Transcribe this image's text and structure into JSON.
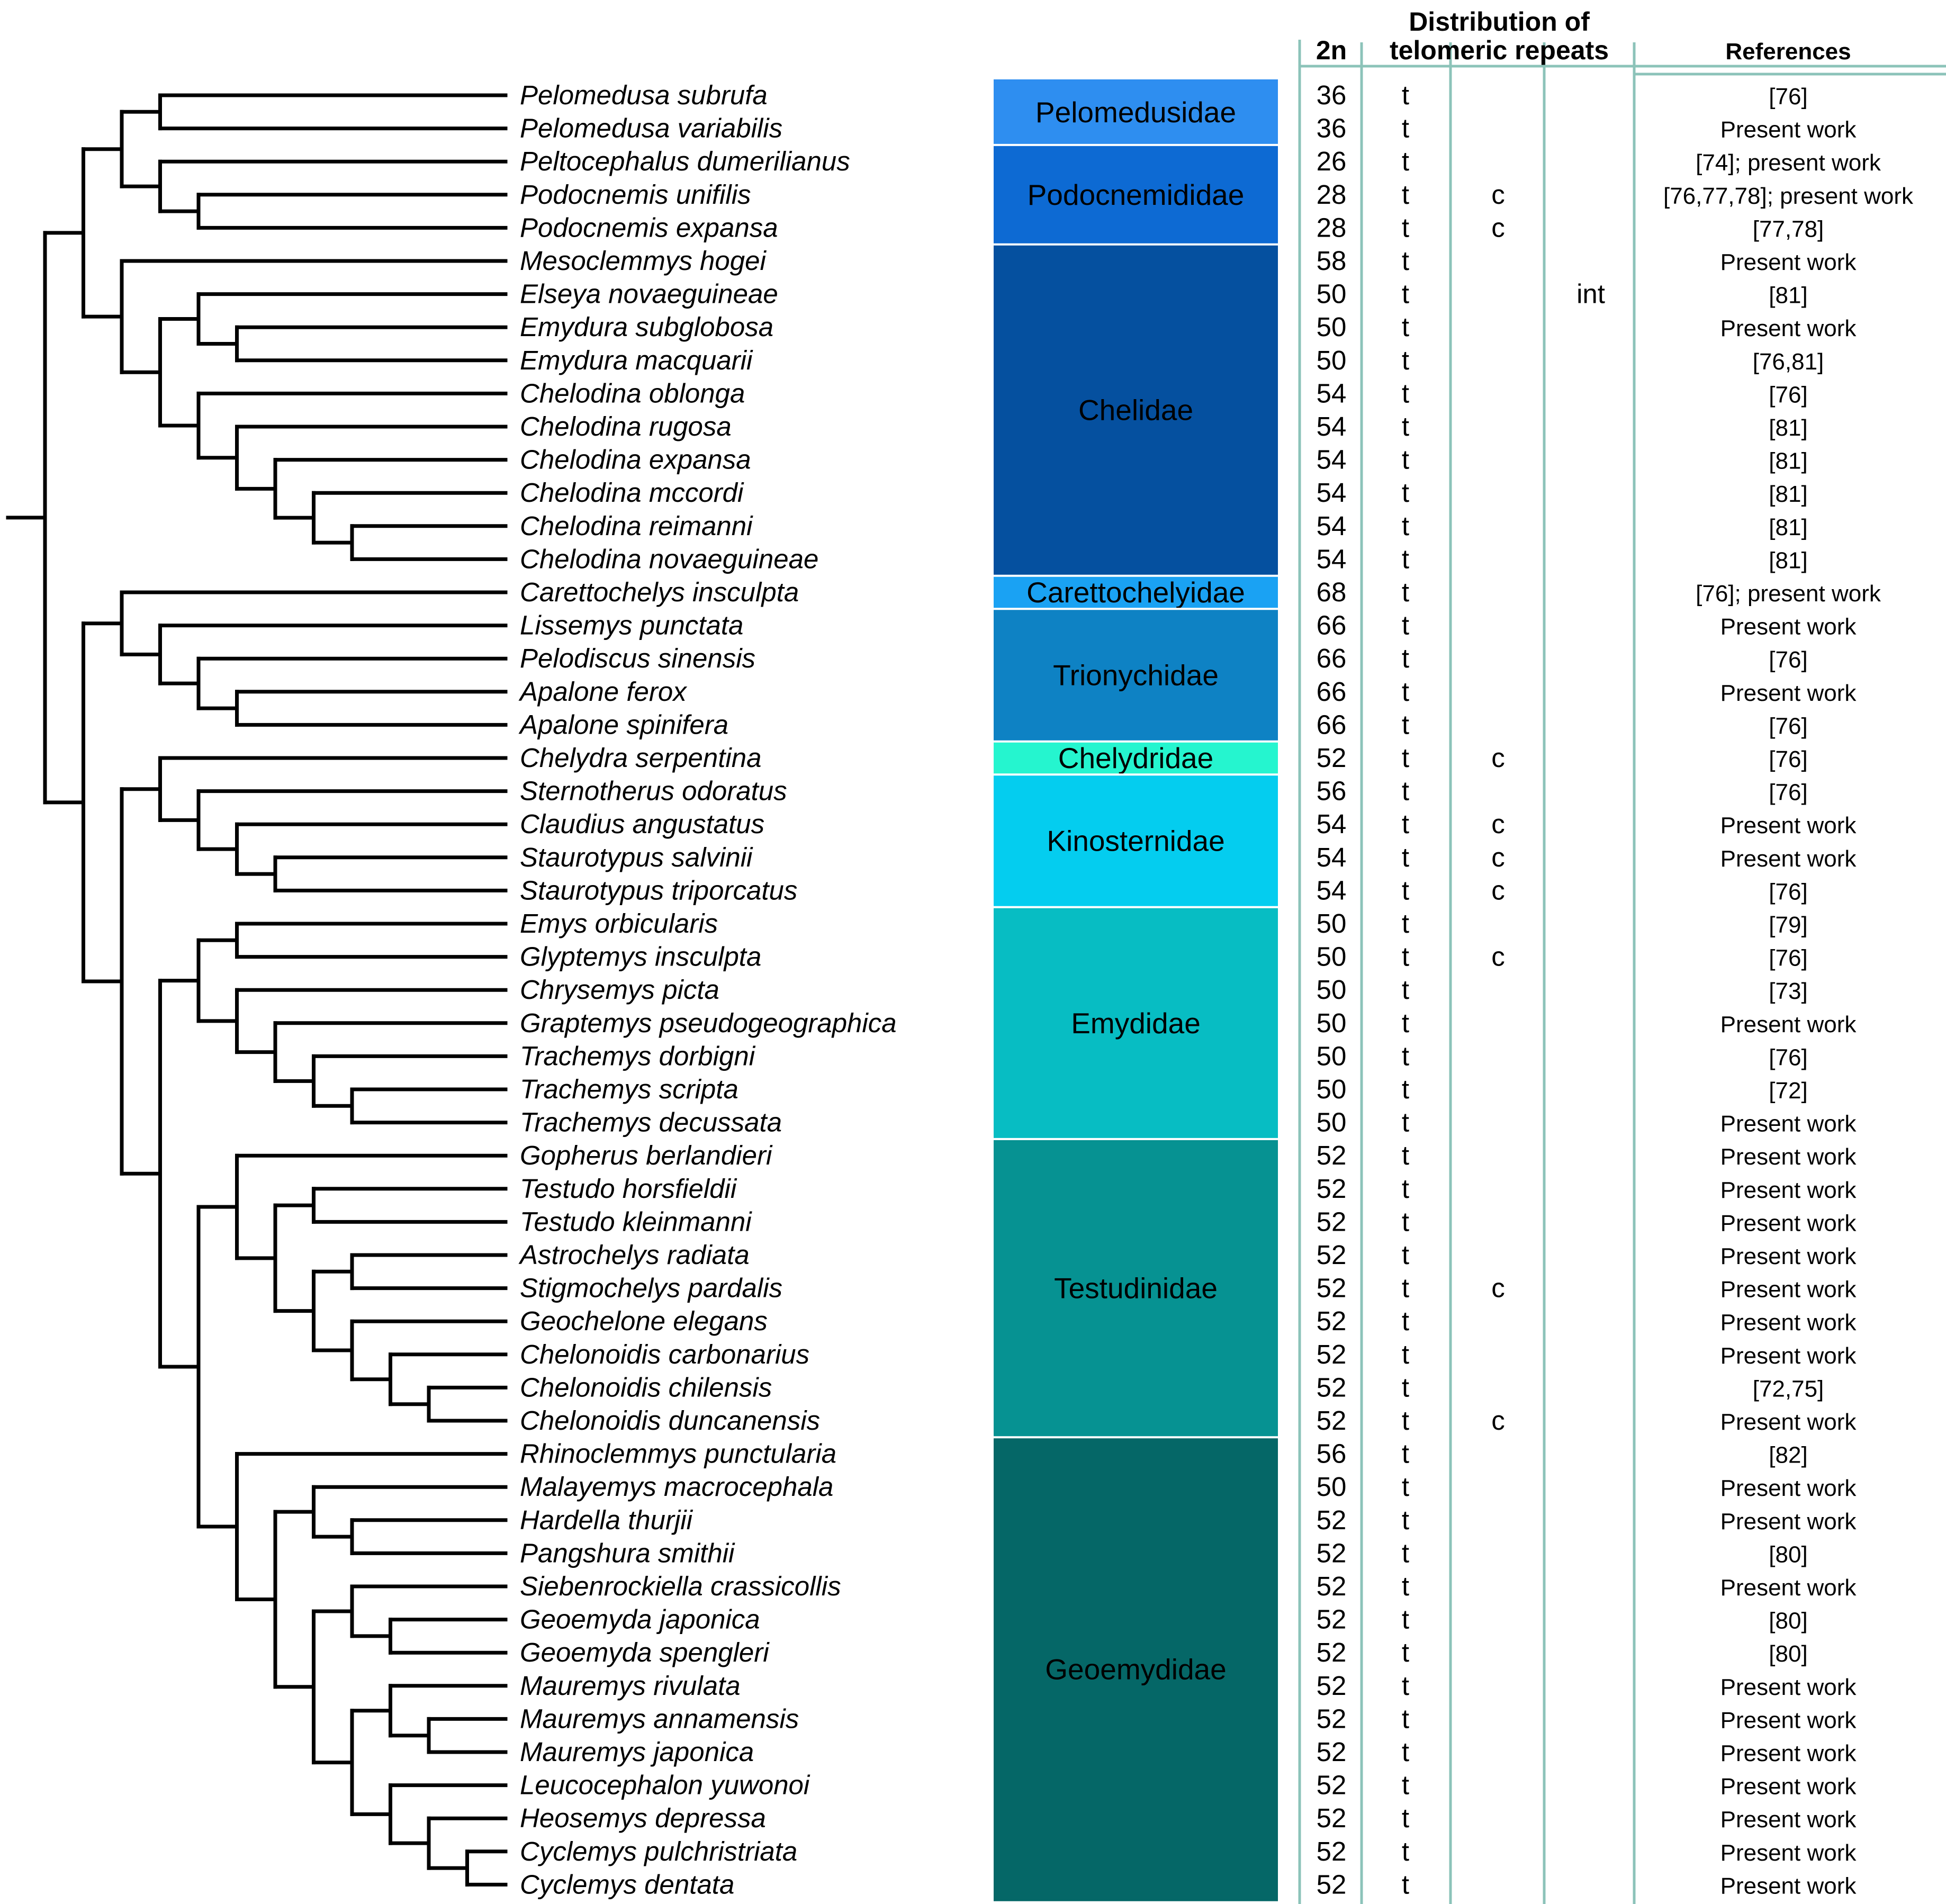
{
  "headers": {
    "chromosome_number": "2n",
    "distribution_line1": "Distribution of",
    "distribution_line2": "telomeric repeats",
    "references": "References"
  },
  "species": [
    {
      "name": "Pelomedusa subrufa",
      "n2": "36",
      "t": "t",
      "c": "",
      "int": "",
      "ref": "[76]"
    },
    {
      "name": "Pelomedusa variabilis",
      "n2": "36",
      "t": "t",
      "c": "",
      "int": "",
      "ref": "Present work"
    },
    {
      "name": "Peltocephalus dumerilianus",
      "n2": "26",
      "t": "t",
      "c": "",
      "int": "",
      "ref": "[74]; present work"
    },
    {
      "name": "Podocnemis unifilis",
      "n2": "28",
      "t": "t",
      "c": "c",
      "int": "",
      "ref": "[76,77,78]; present work"
    },
    {
      "name": "Podocnemis expansa",
      "n2": "28",
      "t": "t",
      "c": "c",
      "int": "",
      "ref": "[77,78]"
    },
    {
      "name": "Mesoclemmys hogei",
      "n2": "58",
      "t": "t",
      "c": "",
      "int": "",
      "ref": "Present work"
    },
    {
      "name": "Elseya novaeguineae",
      "n2": "50",
      "t": "t",
      "c": "",
      "int": "int",
      "ref": "[81]"
    },
    {
      "name": "Emydura subglobosa",
      "n2": "50",
      "t": "t",
      "c": "",
      "int": "",
      "ref": "Present work"
    },
    {
      "name": "Emydura macquarii",
      "n2": "50",
      "t": "t",
      "c": "",
      "int": "",
      "ref": "[76,81]"
    },
    {
      "name": "Chelodina oblonga",
      "n2": "54",
      "t": "t",
      "c": "",
      "int": "",
      "ref": "[76]"
    },
    {
      "name": "Chelodina rugosa",
      "n2": "54",
      "t": "t",
      "c": "",
      "int": "",
      "ref": "[81]"
    },
    {
      "name": "Chelodina expansa",
      "n2": "54",
      "t": "t",
      "c": "",
      "int": "",
      "ref": "[81]"
    },
    {
      "name": "Chelodina mccordi",
      "n2": "54",
      "t": "t",
      "c": "",
      "int": "",
      "ref": "[81]"
    },
    {
      "name": "Chelodina reimanni",
      "n2": "54",
      "t": "t",
      "c": "",
      "int": "",
      "ref": "[81]"
    },
    {
      "name": "Chelodina novaeguineae",
      "n2": "54",
      "t": "t",
      "c": "",
      "int": "",
      "ref": "[81]"
    },
    {
      "name": "Carettochelys insculpta",
      "n2": "68",
      "t": "t",
      "c": "",
      "int": "",
      "ref": "[76]; present work"
    },
    {
      "name": "Lissemys punctata",
      "n2": "66",
      "t": "t",
      "c": "",
      "int": "",
      "ref": "Present work"
    },
    {
      "name": "Pelodiscus sinensis",
      "n2": "66",
      "t": "t",
      "c": "",
      "int": "",
      "ref": "[76]"
    },
    {
      "name": "Apalone ferox",
      "n2": "66",
      "t": "t",
      "c": "",
      "int": "",
      "ref": "Present work"
    },
    {
      "name": "Apalone spinifera",
      "n2": "66",
      "t": "t",
      "c": "",
      "int": "",
      "ref": "[76]"
    },
    {
      "name": "Chelydra serpentina",
      "n2": "52",
      "t": "t",
      "c": "c",
      "int": "",
      "ref": "[76]"
    },
    {
      "name": "Sternotherus odoratus",
      "n2": "56",
      "t": "t",
      "c": "",
      "int": "",
      "ref": "[76]"
    },
    {
      "name": "Claudius angustatus",
      "n2": "54",
      "t": "t",
      "c": "c",
      "int": "",
      "ref": "Present work"
    },
    {
      "name": "Staurotypus salvinii",
      "n2": "54",
      "t": "t",
      "c": "c",
      "int": "",
      "ref": "Present work"
    },
    {
      "name": "Staurotypus triporcatus",
      "n2": "54",
      "t": "t",
      "c": "c",
      "int": "",
      "ref": "[76]"
    },
    {
      "name": "Emys orbicularis",
      "n2": "50",
      "t": "t",
      "c": "",
      "int": "",
      "ref": "[79]"
    },
    {
      "name": "Glyptemys insculpta",
      "n2": "50",
      "t": "t",
      "c": "c",
      "int": "",
      "ref": "[76]"
    },
    {
      "name": "Chrysemys picta",
      "n2": "50",
      "t": "t",
      "c": "",
      "int": "",
      "ref": "[73]"
    },
    {
      "name": "Graptemys pseudogeographica",
      "n2": "50",
      "t": "t",
      "c": "",
      "int": "",
      "ref": "Present work"
    },
    {
      "name": "Trachemys dorbigni",
      "n2": "50",
      "t": "t",
      "c": "",
      "int": "",
      "ref": "[76]"
    },
    {
      "name": "Trachemys scripta",
      "n2": "50",
      "t": "t",
      "c": "",
      "int": "",
      "ref": "[72]"
    },
    {
      "name": "Trachemys decussata",
      "n2": "50",
      "t": "t",
      "c": "",
      "int": "",
      "ref": "Present work"
    },
    {
      "name": "Gopherus berlandieri",
      "n2": "52",
      "t": "t",
      "c": "",
      "int": "",
      "ref": "Present work"
    },
    {
      "name": "Testudo horsfieldii",
      "n2": "52",
      "t": "t",
      "c": "",
      "int": "",
      "ref": "Present work"
    },
    {
      "name": "Testudo kleinmanni",
      "n2": "52",
      "t": "t",
      "c": "",
      "int": "",
      "ref": "Present work"
    },
    {
      "name": "Astrochelys radiata",
      "n2": "52",
      "t": "t",
      "c": "",
      "int": "",
      "ref": "Present work"
    },
    {
      "name": "Stigmochelys pardalis",
      "n2": "52",
      "t": "t",
      "c": "c",
      "int": "",
      "ref": "Present work"
    },
    {
      "name": "Geochelone elegans",
      "n2": "52",
      "t": "t",
      "c": "",
      "int": "",
      "ref": "Present work"
    },
    {
      "name": "Chelonoidis carbonarius",
      "n2": "52",
      "t": "t",
      "c": "",
      "int": "",
      "ref": "Present work"
    },
    {
      "name": "Chelonoidis chilensis",
      "n2": "52",
      "t": "t",
      "c": "",
      "int": "",
      "ref": "[72,75]"
    },
    {
      "name": "Chelonoidis duncanensis",
      "n2": "52",
      "t": "t",
      "c": "c",
      "int": "",
      "ref": "Present work"
    },
    {
      "name": "Rhinoclemmys punctularia",
      "n2": "56",
      "t": "t",
      "c": "",
      "int": "",
      "ref": "[82]"
    },
    {
      "name": "Malayemys macrocephala",
      "n2": "50",
      "t": "t",
      "c": "",
      "int": "",
      "ref": "Present work"
    },
    {
      "name": "Hardella thurjii",
      "n2": "52",
      "t": "t",
      "c": "",
      "int": "",
      "ref": "Present work"
    },
    {
      "name": "Pangshura smithii",
      "n2": "52",
      "t": "t",
      "c": "",
      "int": "",
      "ref": "[80]"
    },
    {
      "name": "Siebenrockiella crassicollis",
      "n2": "52",
      "t": "t",
      "c": "",
      "int": "",
      "ref": "Present work"
    },
    {
      "name": "Geoemyda japonica",
      "n2": "52",
      "t": "t",
      "c": "",
      "int": "",
      "ref": "[80]"
    },
    {
      "name": "Geoemyda spengleri",
      "n2": "52",
      "t": "t",
      "c": "",
      "int": "",
      "ref": "[80]"
    },
    {
      "name": "Mauremys rivulata",
      "n2": "52",
      "t": "t",
      "c": "",
      "int": "",
      "ref": "Present work"
    },
    {
      "name": "Mauremys annamensis",
      "n2": "52",
      "t": "t",
      "c": "",
      "int": "",
      "ref": "Present work"
    },
    {
      "name": "Mauremys japonica",
      "n2": "52",
      "t": "t",
      "c": "",
      "int": "",
      "ref": "Present work"
    },
    {
      "name": "Leucocephalon yuwonoi",
      "n2": "52",
      "t": "t",
      "c": "",
      "int": "",
      "ref": "Present work"
    },
    {
      "name": "Heosemys depressa",
      "n2": "52",
      "t": "t",
      "c": "",
      "int": "",
      "ref": "Present work"
    },
    {
      "name": "Cyclemys pulchristriata",
      "n2": "52",
      "t": "t",
      "c": "",
      "int": "",
      "ref": "Present work"
    },
    {
      "name": "Cyclemys dentata",
      "n2": "52",
      "t": "t",
      "c": "",
      "int": "",
      "ref": "Present work"
    }
  ],
  "families": [
    {
      "name": "Pelomedusidae",
      "first": 0,
      "last": 1,
      "color": "#2e8ef0"
    },
    {
      "name": "Podocnemididae",
      "first": 2,
      "last": 4,
      "color": "#0d6ad3"
    },
    {
      "name": "Chelidae",
      "first": 5,
      "last": 14,
      "color": "#05509f"
    },
    {
      "name": "Carettochelyidae",
      "first": 15,
      "last": 15,
      "color": "#1aa2f3"
    },
    {
      "name": "Trionychidae",
      "first": 16,
      "last": 19,
      "color": "#0e82c4"
    },
    {
      "name": "Chelydridae",
      "first": 20,
      "last": 20,
      "color": "#25f5cf"
    },
    {
      "name": "Kinosternidae",
      "first": 21,
      "last": 24,
      "color": "#04cdef"
    },
    {
      "name": "Emydidae",
      "first": 25,
      "last": 31,
      "color": "#07bdc3"
    },
    {
      "name": "Testudinidae",
      "first": 32,
      "last": 40,
      "color": "#069292"
    },
    {
      "name": "Geoemydidae",
      "first": 41,
      "last": 54,
      "color": "#056767"
    }
  ],
  "tree": [
    [
      [
        [
          "Pelomedusa subrufa",
          "Pelomedusa variabilis"
        ],
        [
          "Peltocephalus dumerilianus",
          [
            "Podocnemis unifilis",
            "Podocnemis expansa"
          ]
        ]
      ],
      [
        "Mesoclemmys hogei",
        [
          [
            "Elseya novaeguineae",
            [
              "Emydura subglobosa",
              "Emydura macquarii"
            ]
          ],
          [
            "Chelodina oblonga",
            [
              "Chelodina rugosa",
              [
                "Chelodina expansa",
                [
                  "Chelodina mccordi",
                  [
                    "Chelodina reimanni",
                    "Chelodina novaeguineae"
                  ]
                ]
              ]
            ]
          ]
        ]
      ]
    ],
    [
      [
        "Carettochelys insculpta",
        [
          "Lissemys punctata",
          [
            "Pelodiscus sinensis",
            [
              "Apalone ferox",
              "Apalone spinifera"
            ]
          ]
        ]
      ],
      [
        [
          "Chelydra serpentina",
          [
            "Sternotherus odoratus",
            [
              "Claudius angustatus",
              [
                "Staurotypus salvinii",
                "Staurotypus triporcatus"
              ]
            ]
          ]
        ],
        [
          [
            [
              "Emys orbicularis",
              "Glyptemys insculpta"
            ],
            [
              "Chrysemys picta",
              [
                "Graptemys pseudogeographica",
                [
                  "Trachemys dorbigni",
                  [
                    "Trachemys scripta",
                    "Trachemys decussata"
                  ]
                ]
              ]
            ]
          ],
          [
            [
              "Gopherus berlandieri",
              [
                [
                  "Testudo horsfieldii",
                  "Testudo kleinmanni"
                ],
                [
                  [
                    "Astrochelys radiata",
                    "Stigmochelys pardalis"
                  ],
                  [
                    "Geochelone elegans",
                    [
                      "Chelonoidis carbonarius",
                      [
                        "Chelonoidis chilensis",
                        "Chelonoidis duncanensis"
                      ]
                    ]
                  ]
                ]
              ]
            ],
            [
              "Rhinoclemmys punctularia",
              [
                [
                  "Malayemys macrocephala",
                  [
                    "Hardella thurjii",
                    "Pangshura smithii"
                  ]
                ],
                [
                  [
                    "Siebenrockiella crassicollis",
                    [
                      "Geoemyda japonica",
                      "Geoemyda spengleri"
                    ]
                  ],
                  [
                    [
                      "Mauremys rivulata",
                      [
                        "Mauremys annamensis",
                        "Mauremys japonica"
                      ]
                    ],
                    [
                      "Leucocephalon yuwonoi",
                      [
                        "Heosemys depressa",
                        [
                          "Cyclemys pulchristriata",
                          "Cyclemys dentata"
                        ]
                      ]
                    ]
                  ]
                ]
              ]
            ]
          ]
        ]
      ]
    ]
  ]
}
